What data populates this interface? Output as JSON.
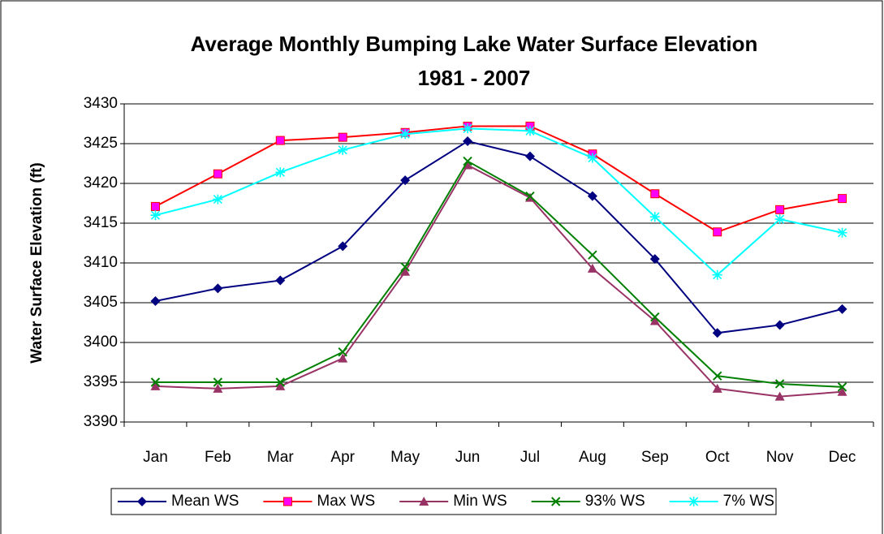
{
  "chart_data": {
    "type": "line",
    "title": [
      "Average Monthly Bumping Lake Water Surface Elevation",
      "1981 - 2007"
    ],
    "y_label": "Water Surface Elevation (ft)",
    "categories": [
      "Jan",
      "Feb",
      "Mar",
      "Apr",
      "May",
      "Jun",
      "Jul",
      "Aug",
      "Sep",
      "Oct",
      "Nov",
      "Dec"
    ],
    "series": [
      {
        "name": "Mean WS",
        "color": "#000080",
        "marker": "diamond",
        "marker_color": "#000080",
        "values": [
          3405.2,
          3406.8,
          3407.8,
          3412.1,
          3420.4,
          3425.3,
          3423.4,
          3418.4,
          3410.5,
          3401.2,
          3402.2,
          3404.2
        ]
      },
      {
        "name": "Max WS",
        "color": "#ff0000",
        "marker": "square",
        "marker_color": "#ff00ff",
        "values": [
          3417.1,
          3421.2,
          3425.4,
          3425.8,
          3426.4,
          3427.2,
          3427.2,
          3423.7,
          3418.7,
          3413.9,
          3416.7,
          3418.1
        ]
      },
      {
        "name": "Min WS",
        "color": "#993366",
        "marker": "triangle",
        "marker_color": "#993366",
        "values": [
          3394.5,
          3394.2,
          3394.5,
          3398.0,
          3408.9,
          3422.3,
          3418.2,
          3409.3,
          3402.7,
          3394.2,
          3393.2,
          3393.8
        ]
      },
      {
        "name": "93% WS",
        "color": "#008000",
        "marker": "x",
        "marker_color": "#008000",
        "values": [
          3395.0,
          3395.0,
          3395.0,
          3398.8,
          3409.5,
          3422.8,
          3418.4,
          3411.0,
          3403.2,
          3395.8,
          3394.8,
          3394.4
        ]
      },
      {
        "name": "7% WS",
        "color": "#00ffff",
        "marker": "star",
        "marker_color": "#00ffff",
        "values": [
          3416.0,
          3418.0,
          3421.4,
          3424.2,
          3426.2,
          3426.9,
          3426.6,
          3423.2,
          3415.8,
          3408.5,
          3415.5,
          3413.8
        ]
      }
    ],
    "ylim": [
      3390,
      3430
    ],
    "yticks": [
      3390,
      3395,
      3400,
      3405,
      3410,
      3415,
      3420,
      3425,
      3430
    ],
    "grid": true,
    "legend": "bottom"
  }
}
